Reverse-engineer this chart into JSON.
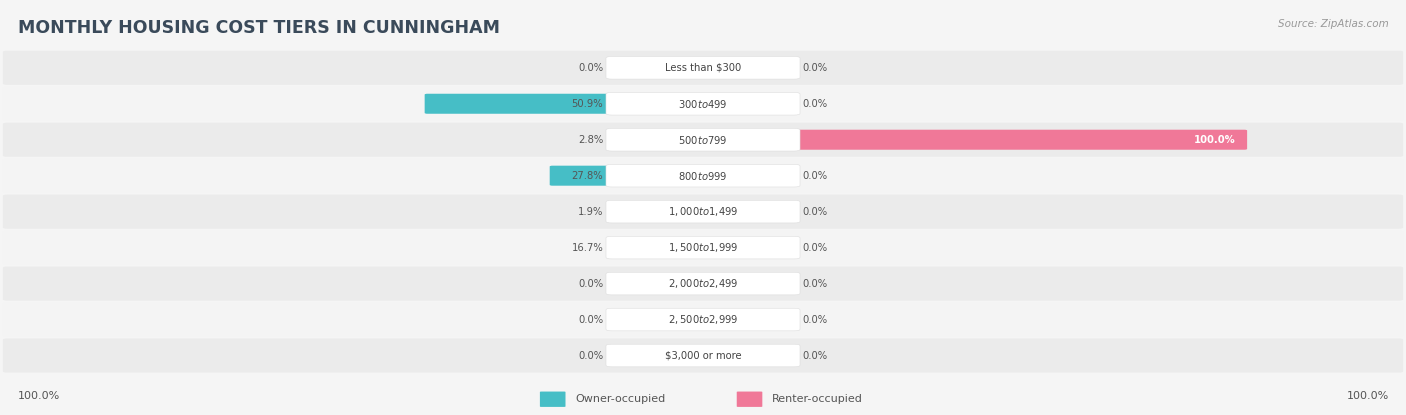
{
  "title": "MONTHLY HOUSING COST TIERS IN CUNNINGHAM",
  "source": "Source: ZipAtlas.com",
  "categories": [
    "Less than $300",
    "$300 to $499",
    "$500 to $799",
    "$800 to $999",
    "$1,000 to $1,499",
    "$1,500 to $1,999",
    "$2,000 to $2,499",
    "$2,500 to $2,999",
    "$3,000 or more"
  ],
  "owner_values": [
    0.0,
    50.9,
    2.8,
    27.8,
    1.9,
    16.7,
    0.0,
    0.0,
    0.0
  ],
  "renter_values": [
    0.0,
    0.0,
    100.0,
    0.0,
    0.0,
    0.0,
    0.0,
    0.0,
    0.0
  ],
  "owner_color": "#46bec6",
  "renter_color": "#f07898",
  "renter_color_light": "#f4b8cc",
  "owner_color_light": "#88d4d8",
  "bg_color": "#f5f5f5",
  "row_bg_even": "#ebebeb",
  "row_bg_odd": "#f4f4f4",
  "title_color": "#3a4a5a",
  "bottom_left_label": "100.0%",
  "bottom_right_label": "100.0%",
  "max_value": 100.0,
  "legend_owner": "Owner-occupied",
  "legend_renter": "Renter-occupied"
}
